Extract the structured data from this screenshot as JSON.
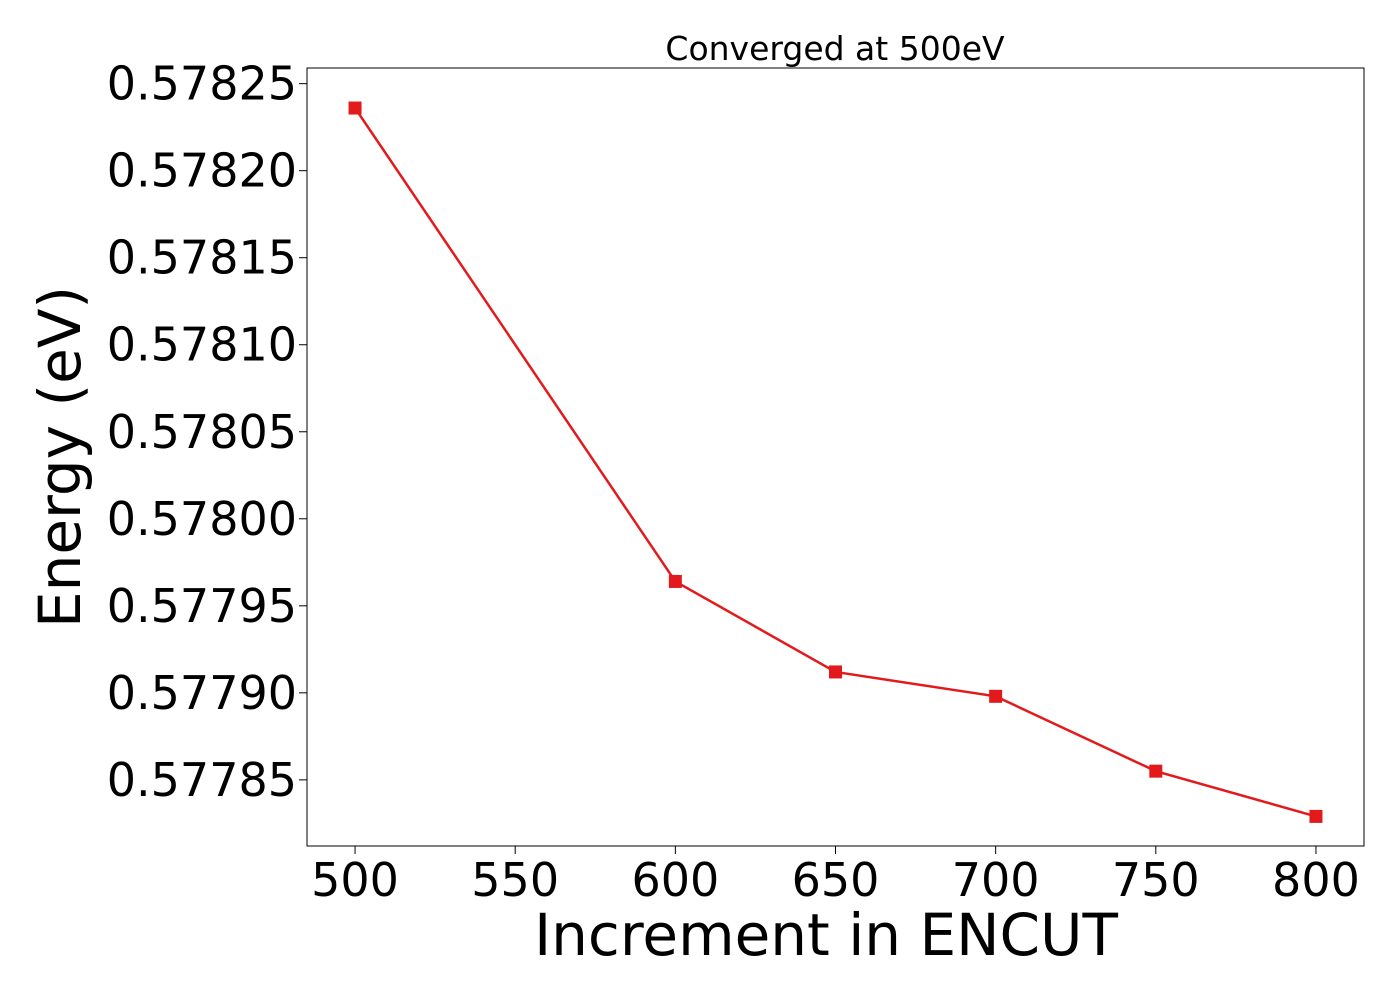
{
  "chart_data": {
    "type": "line",
    "title": "Converged at 500eV",
    "xlabel": "Increment in ENCUT",
    "ylabel": "Energy (eV)",
    "xlim": [
      485,
      815
    ],
    "ylim": [
      0.577812,
      0.578259
    ],
    "x_ticks": [
      500,
      550,
      600,
      650,
      700,
      750,
      800
    ],
    "x_tick_labels": [
      "500",
      "550",
      "600",
      "650",
      "700",
      "750",
      "800"
    ],
    "y_ticks": [
      0.57785,
      0.5779,
      0.57795,
      0.578,
      0.57805,
      0.5781,
      0.57815,
      0.5782,
      0.57825
    ],
    "y_tick_labels": [
      "0.57785",
      "0.57790",
      "0.57795",
      "0.57800",
      "0.57805",
      "0.57810",
      "0.57815",
      "0.57820",
      "0.57825"
    ],
    "grid": false,
    "series": [
      {
        "name": "",
        "color": "#e31a1c",
        "marker": "square",
        "x": [
          500,
          600,
          650,
          700,
          750,
          800
        ],
        "y": [
          0.578236,
          0.577964,
          0.577912,
          0.577898,
          0.577855,
          0.577829
        ]
      }
    ]
  }
}
